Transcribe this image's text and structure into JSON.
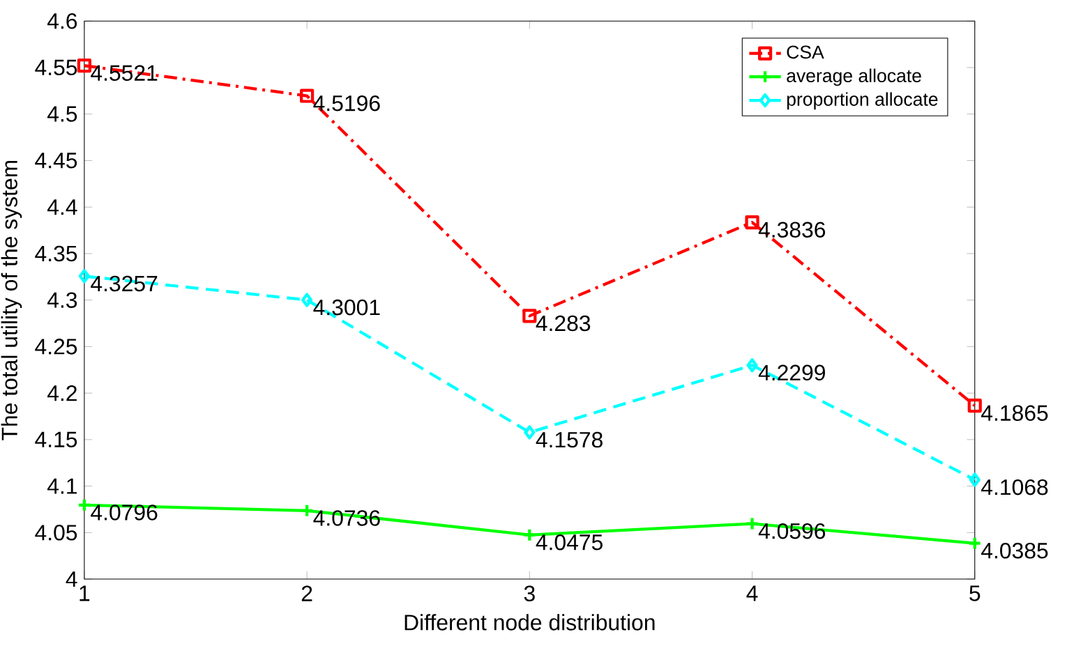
{
  "chart_data": {
    "type": "line",
    "xlabel": "Different node distribution",
    "ylabel": "The total utility of the system",
    "x": [
      1,
      2,
      3,
      4,
      5
    ],
    "series": [
      {
        "name": "CSA",
        "color": "#ff0000",
        "values": [
          4.5521,
          4.5196,
          4.283,
          4.3836,
          4.1865
        ],
        "marker": "square",
        "line_style": "dashdot"
      },
      {
        "name": "average allocate",
        "color": "#00ff00",
        "values": [
          4.0796,
          4.0736,
          4.0475,
          4.0596,
          4.0385
        ],
        "marker": "cross",
        "line_style": "solid"
      },
      {
        "name": "proportion allocate",
        "color": "#00ffff",
        "values": [
          4.3257,
          4.3001,
          4.1578,
          4.2299,
          4.1068
        ],
        "marker": "diamond",
        "line_style": "dashed"
      }
    ],
    "xlim": [
      1,
      5
    ],
    "xticks": [
      1,
      2,
      3,
      4,
      5
    ],
    "ylim": [
      4,
      4.6
    ],
    "yticks": [
      4,
      4.05,
      4.1,
      4.15,
      4.2,
      4.25,
      4.3,
      4.35,
      4.4,
      4.45,
      4.5,
      4.55,
      4.6
    ],
    "data_labels": true,
    "legend": "top right",
    "grid": false
  }
}
